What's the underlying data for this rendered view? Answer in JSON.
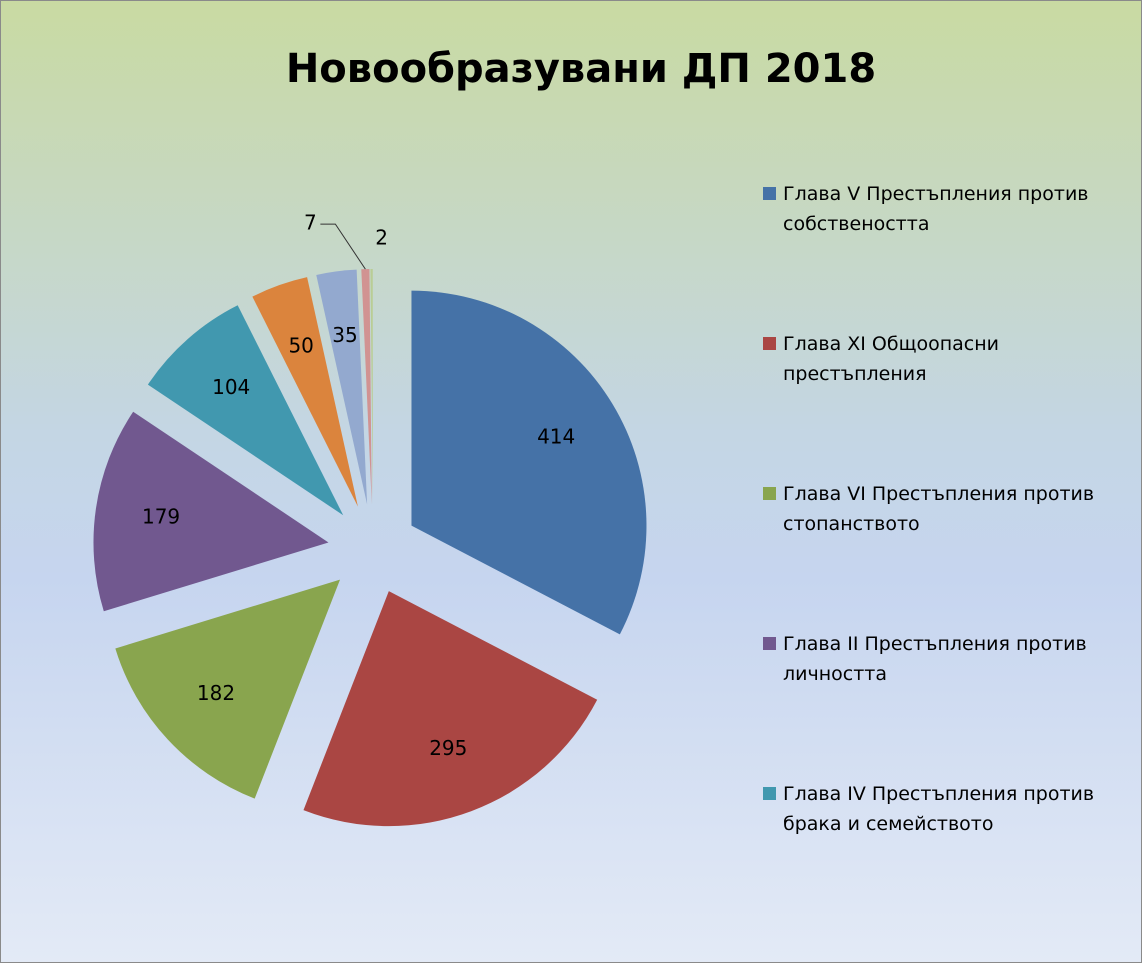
{
  "chart_data": {
    "type": "pie",
    "title": "Новообразувани ДП 2018",
    "categories": [
      "Глава V Престъпления против собствеността",
      "Глава XI Общоопасни престъпления",
      "Глава VI Престъпления против стопанството",
      "Глава II Престъпления против личността",
      "Глава IV Престъпления против брака и семейството",
      null,
      null,
      null,
      null
    ],
    "values": [
      414,
      295,
      182,
      179,
      104,
      50,
      35,
      7,
      2
    ],
    "colors": [
      "#4572a7",
      "#aa4643",
      "#89a54e",
      "#71588f",
      "#4198af",
      "#db843d",
      "#93a9cf",
      "#d19392",
      "#b9cd96"
    ],
    "legend": "right"
  }
}
